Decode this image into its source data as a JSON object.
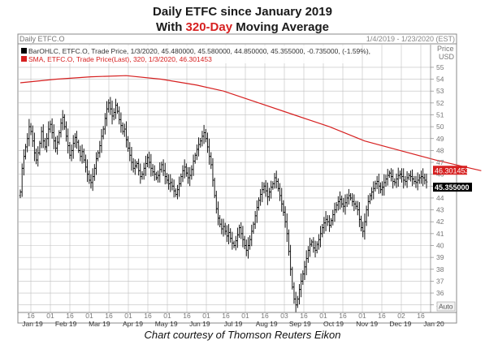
{
  "header": {
    "line1": "Daily ETFC since January 2019",
    "line2_prefix": "With ",
    "line2_highlight": "320-Day",
    "line2_suffix": " Moving Average"
  },
  "panel": {
    "symbol_label": "Daily ETFC.O",
    "date_range": "1/4/2019 - 1/23/2020 (EST)",
    "legend_bar": "BarOHLC, ETFC.O, Trade Price, 1/3/2020, 45.480000, 45.580000, 44.850000, 45.355000, -0.735000, (-1.59%),",
    "legend_sma": "SMA, ETFC.O, Trade Price(Last), 320, 1/3/2020, 46.301453",
    "price_label": "Price",
    "currency_label": "USD",
    "auto_label": "Auto",
    "sma_value_tag": "46.301453",
    "last_value_tag": "45.355000"
  },
  "caption": "Chart courtesy of Thomson Reuters Eikon",
  "colors": {
    "bars": "#000000",
    "sma": "#d62020",
    "grid": "#bfbfbf",
    "highlight": "#d62020"
  },
  "chart_data": {
    "type": "ohlc",
    "title": "Daily ETFC since January 2019",
    "subtitle": "With 320-Day Moving Average",
    "ylim": [
      34.5,
      55.2
    ],
    "y_ticks": [
      35,
      36,
      37,
      38,
      39,
      40,
      41,
      42,
      43,
      44,
      45,
      46,
      47,
      48,
      49,
      50,
      51,
      52,
      53,
      54,
      55
    ],
    "x_tick_labels": [
      "16",
      "01",
      "16",
      "01",
      "16",
      "01",
      "16",
      "01",
      "16",
      "01",
      "16",
      "01",
      "16",
      "03",
      "16",
      "01",
      "16",
      "01",
      "16",
      "02",
      "16"
    ],
    "x_month_labels": [
      "Jan 19",
      "Feb 19",
      "Mar 19",
      "Apr 19",
      "May 19",
      "Jun 19",
      "Jul 19",
      "Aug 19",
      "Sep 19",
      "Oct 19",
      "Nov 19",
      "Dec 19",
      "Jan 20"
    ],
    "sma": {
      "name": "SMA 320",
      "points": [
        [
          0,
          53.7
        ],
        [
          20,
          54.0
        ],
        [
          40,
          54.2
        ],
        [
          60,
          54.3
        ],
        [
          80,
          54.0
        ],
        [
          100,
          53.5
        ],
        [
          115,
          53.0
        ],
        [
          135,
          52.0
        ],
        [
          155,
          51.0
        ],
        [
          175,
          50.0
        ],
        [
          195,
          48.8
        ],
        [
          215,
          48.0
        ],
        [
          235,
          47.2
        ],
        [
          255,
          46.5
        ],
        [
          261,
          46.3
        ]
      ]
    },
    "closes": [
      44.5,
      46.5,
      47.5,
      48.3,
      49.0,
      50.0,
      49.6,
      48.8,
      47.8,
      47.2,
      47.8,
      48.6,
      49.6,
      48.8,
      48.3,
      49.0,
      49.8,
      50.2,
      49.5,
      48.8,
      48.2,
      48.7,
      49.5,
      50.3,
      50.8,
      50.0,
      49.2,
      48.4,
      47.6,
      48.0,
      48.6,
      49.1,
      48.7,
      48.0,
      47.5,
      47.9,
      47.2,
      46.6,
      46.0,
      45.5,
      45.3,
      45.8,
      46.5,
      47.3,
      47.8,
      48.4,
      49.2,
      49.8,
      50.7,
      51.5,
      52.0,
      51.5,
      50.9,
      51.2,
      51.8,
      51.3,
      50.6,
      50.1,
      49.6,
      49.8,
      48.9,
      48.2,
      47.6,
      47.0,
      46.5,
      46.7,
      46.9,
      46.3,
      45.8,
      46.0,
      46.5,
      46.9,
      47.4,
      47.0,
      46.5,
      46.2,
      46.0,
      45.7,
      45.9,
      46.4,
      46.8,
      46.3,
      45.8,
      45.5,
      45.2,
      45.3,
      45.0,
      44.6,
      44.3,
      44.7,
      45.2,
      45.8,
      46.3,
      46.6,
      46.1,
      45.7,
      45.9,
      46.4,
      47.1,
      47.6,
      48.1,
      48.5,
      48.8,
      49.2,
      49.5,
      49.0,
      48.3,
      47.5,
      46.8,
      45.5,
      44.2,
      43.1,
      42.3,
      41.8,
      41.4,
      41.6,
      41.2,
      40.8,
      41.1,
      40.6,
      40.2,
      40.0,
      40.4,
      40.9,
      41.5,
      41.0,
      40.5,
      40.0,
      39.6,
      40.0,
      40.5,
      41.2,
      41.8,
      42.5,
      43.2,
      43.8,
      44.3,
      44.7,
      45.0,
      44.6,
      44.1,
      44.5,
      44.9,
      45.2,
      45.7,
      45.4,
      44.8,
      44.2,
      43.5,
      42.8,
      42.0,
      41.0,
      39.5,
      38.0,
      36.5,
      35.5,
      35.0,
      35.5,
      36.3,
      37.0,
      37.6,
      38.2,
      38.9,
      39.6,
      40.1,
      40.3,
      39.8,
      39.6,
      40.1,
      40.5,
      41.0,
      41.5,
      41.9,
      42.2,
      42.0,
      41.7,
      42.1,
      42.6,
      43.0,
      43.4,
      43.7,
      43.9,
      43.5,
      43.3,
      43.6,
      44.0,
      44.2,
      44.0,
      43.7,
      43.5,
      43.3,
      43.0,
      42.2,
      41.5,
      41.2,
      42.0,
      43.0,
      43.7,
      44.2,
      44.5,
      44.8,
      45.2,
      45.4,
      45.0,
      44.7,
      44.9,
      45.3,
      45.6,
      45.9,
      46.1,
      45.8,
      45.4,
      45.3,
      45.6,
      45.9,
      46.0,
      45.8,
      45.5,
      45.4,
      45.7,
      45.9,
      45.8,
      45.6,
      45.4,
      45.3,
      45.5,
      45.7,
      45.8,
      45.7,
      45.5,
      45.355
    ],
    "last": {
      "date": "1/3/2020",
      "open": 45.48,
      "high": 45.58,
      "low": 44.85,
      "close": 45.355
    },
    "sma_last": 46.301453
  }
}
